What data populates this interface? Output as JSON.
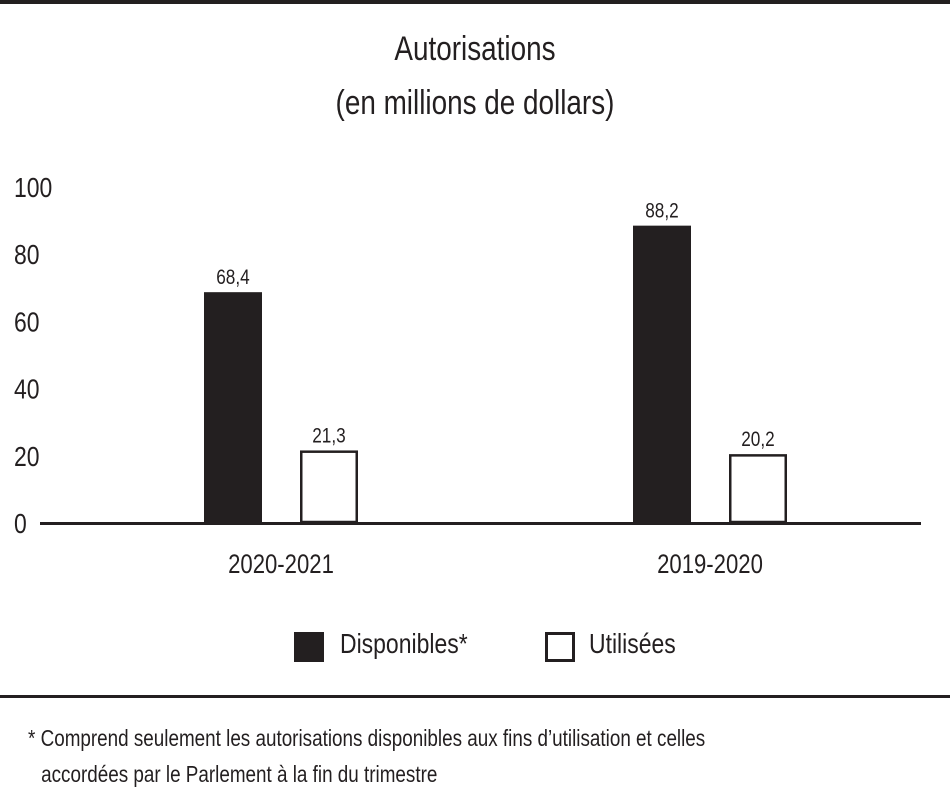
{
  "chart_data": {
    "type": "bar",
    "title": "Autorisations",
    "subtitle": "(en millions de dollars)",
    "categories": [
      "2020-2021",
      "2019-2020"
    ],
    "series": [
      {
        "name": "Disponibles*",
        "values": [
          68.4,
          88.2
        ],
        "labels": [
          "68,4",
          "88,2"
        ],
        "color": "#231f20",
        "fill": "solid"
      },
      {
        "name": "Utilisées",
        "values": [
          21.3,
          20.2
        ],
        "labels": [
          "21,3",
          "20,2"
        ],
        "color": "#ffffff",
        "fill": "outline"
      }
    ],
    "ylim": [
      0,
      100
    ],
    "yticks": [
      0,
      20,
      40,
      60,
      80,
      100
    ],
    "grid": false,
    "legend": "bottom"
  },
  "footnote": {
    "line1": "* Comprend seulement les autorisations disponibles aux fins d’utilisation et celles",
    "line2": "accordées par le Parlement à la fin du trimestre"
  },
  "colors": {
    "ink": "#231f20",
    "background": "#ffffff"
  }
}
